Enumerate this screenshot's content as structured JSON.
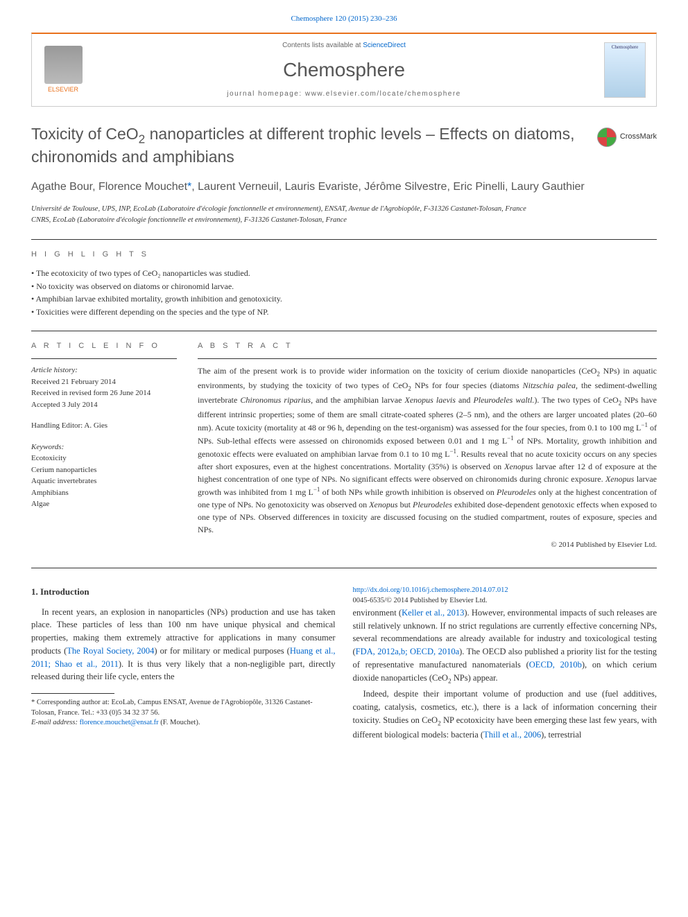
{
  "citation": {
    "text": "Chemosphere 120 (2015) 230–236",
    "link_color": "#0066cc"
  },
  "header": {
    "publisher": "ELSEVIER",
    "contents_prefix": "Contents lists available at ",
    "contents_link": "ScienceDirect",
    "journal_name": "Chemosphere",
    "homepage_prefix": "journal homepage: ",
    "homepage_url": "www.elsevier.com/locate/chemosphere",
    "cover_label": "Chemosphere"
  },
  "crossmark_label": "CrossMark",
  "title_parts": {
    "before_sub": "Toxicity of CeO",
    "sub": "2",
    "after_sub": " nanoparticles at different trophic levels – Effects on diatoms, chironomids and amphibians"
  },
  "authors": {
    "list": "Agathe Bour, Florence Mouchet",
    "corr_marker": "*",
    "rest": ", Laurent Verneuil, Lauris Evariste, Jérôme Silvestre, Eric Pinelli, Laury Gauthier"
  },
  "affiliations": [
    "Université de Toulouse, UPS, INP, EcoLab (Laboratoire d'écologie fonctionnelle et environnement), ENSAT, Avenue de l'Agrobiopôle, F-31326 Castanet-Tolosan, France",
    "CNRS, EcoLab (Laboratoire d'écologie fonctionnelle et environnement), F-31326 Castanet-Tolosan, France"
  ],
  "highlights": {
    "label": "H I G H L I G H T S",
    "items": [
      "The ecotoxicity of two types of CeO₂ nanoparticles was studied.",
      "No toxicity was observed on diatoms or chironomid larvae.",
      "Amphibian larvae exhibited mortality, growth inhibition and genotoxicity.",
      "Toxicities were different depending on the species and the type of NP."
    ]
  },
  "article_info": {
    "label": "A R T I C L E   I N F O",
    "history_label": "Article history:",
    "received": "Received 21 February 2014",
    "revised": "Received in revised form 26 June 2014",
    "accepted": "Accepted 3 July 2014",
    "editor_label": "Handling Editor: A. Gies",
    "keywords_label": "Keywords:",
    "keywords": [
      "Ecotoxicity",
      "Cerium nanoparticles",
      "Aquatic invertebrates",
      "Amphibians",
      "Algae"
    ]
  },
  "abstract": {
    "label": "A B S T R A C T",
    "text_parts": [
      {
        "t": "The aim of the present work is to provide wider information on the toxicity of cerium dioxide nanoparticles (CeO"
      },
      {
        "sub": "2"
      },
      {
        "t": " NPs) in aquatic environments, by studying the toxicity of two types of CeO"
      },
      {
        "sub": "2"
      },
      {
        "t": " NPs for four species (diatoms "
      },
      {
        "i": "Nitzschia palea"
      },
      {
        "t": ", the sediment-dwelling invertebrate "
      },
      {
        "i": "Chironomus riparius"
      },
      {
        "t": ", and the amphibian larvae "
      },
      {
        "i": "Xenopus laevis"
      },
      {
        "t": " and "
      },
      {
        "i": "Pleurodeles waltl."
      },
      {
        "t": "). The two types of CeO"
      },
      {
        "sub": "2"
      },
      {
        "t": " NPs have different intrinsic properties; some of them are small citrate-coated spheres (2–5 nm), and the others are larger uncoated plates (20–60 nm). Acute toxicity (mortality at 48 or 96 h, depending on the test-organism) was assessed for the four species, from 0.1 to 100 mg L"
      },
      {
        "sup": "−1"
      },
      {
        "t": " of NPs. Sub-lethal effects were assessed on chironomids exposed between 0.01 and 1 mg L"
      },
      {
        "sup": "−1"
      },
      {
        "t": " of NPs. Mortality, growth inhibition and genotoxic effects were evaluated on amphibian larvae from 0.1 to 10 mg L"
      },
      {
        "sup": "−1"
      },
      {
        "t": ". Results reveal that no acute toxicity occurs on any species after short exposures, even at the highest concentrations. Mortality (35%) is observed on "
      },
      {
        "i": "Xenopus"
      },
      {
        "t": " larvae after 12 d of exposure at the highest concentration of one type of NPs. No significant effects were observed on chironomids during chronic exposure. "
      },
      {
        "i": "Xenopus"
      },
      {
        "t": " larvae growth was inhibited from 1 mg L"
      },
      {
        "sup": "−1"
      },
      {
        "t": " of both NPs while growth inhibition is observed on "
      },
      {
        "i": "Pleurodeles"
      },
      {
        "t": " only at the highest concentration of one type of NPs. No genotoxicity was observed on "
      },
      {
        "i": "Xenopus"
      },
      {
        "t": " but "
      },
      {
        "i": "Pleurodeles"
      },
      {
        "t": " exhibited dose-dependent genotoxic effects when exposed to one type of NPs. Observed differences in toxicity are discussed focusing on the studied compartment, routes of exposure, species and NPs."
      }
    ],
    "copyright": "© 2014 Published by Elsevier Ltd."
  },
  "introduction": {
    "heading": "1. Introduction",
    "para1_parts": [
      {
        "t": "In recent years, an explosion in nanoparticles (NPs) production and use has taken place. These particles of less than 100 nm have unique physical and chemical properties, making them extremely attractive for applications in many consumer products ("
      },
      {
        "a": "The Royal Society, 2004"
      },
      {
        "t": ") or for military or medical purposes ("
      },
      {
        "a": "Huang et al., 2011; Shao et al., 2011"
      },
      {
        "t": "). It is thus very likely that a non-negligible part, directly released during their life cycle, enters the"
      }
    ],
    "para1b_parts": [
      {
        "t": "environment ("
      },
      {
        "a": "Keller et al., 2013"
      },
      {
        "t": "). However, environmental impacts of such releases are still relatively unknown. If no strict regulations are currently effective concerning NPs, several recommendations are already available for industry and toxicological testing ("
      },
      {
        "a": "FDA, 2012a,b; OECD, 2010a"
      },
      {
        "t": "). The OECD also published a priority list for the testing of representative manufactured nanomaterials ("
      },
      {
        "a": "OECD, 2010b"
      },
      {
        "t": "), on which cerium dioxide nanoparticles (CeO"
      },
      {
        "sub": "2"
      },
      {
        "t": " NPs) appear."
      }
    ],
    "para2_parts": [
      {
        "t": "Indeed, despite their important volume of production and use (fuel additives, coating, catalysis, cosmetics, etc.), there is a lack of information concerning their toxicity. Studies on CeO"
      },
      {
        "sub": "2"
      },
      {
        "t": " NP ecotoxicity have been emerging these last few years, with different biological models: bacteria ("
      },
      {
        "a": "Thill et al., 2006"
      },
      {
        "t": "), terrestrial"
      }
    ]
  },
  "footnotes": {
    "corr_marker": "*",
    "corr_text": " Corresponding author at: EcoLab, Campus ENSAT, Avenue de l'Agrobiopôle, 31326 Castanet-Tolosan, France. Tel.: +33 (0)5 34 32 37 56.",
    "email_label": "E-mail address: ",
    "email": "florence.mouchet@ensat.fr",
    "email_suffix": " (F. Mouchet)."
  },
  "doi": {
    "url": "http://dx.doi.org/10.1016/j.chemosphere.2014.07.012",
    "issn_line": "0045-6535/© 2014 Published by Elsevier Ltd."
  },
  "colors": {
    "link": "#0066cc",
    "orange": "#e9711c",
    "text": "#333333",
    "heading_gray": "#555555"
  }
}
